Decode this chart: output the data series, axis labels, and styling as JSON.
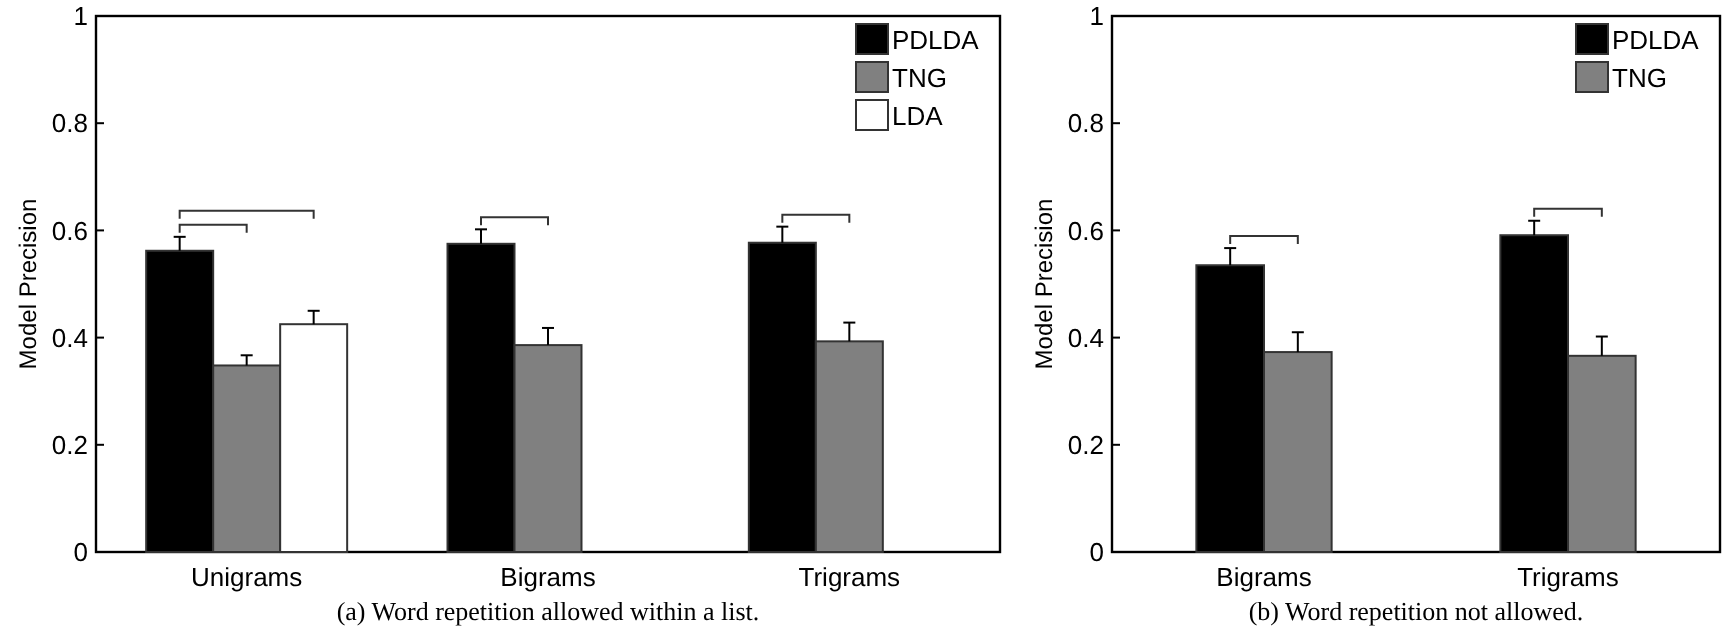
{
  "chart_data": [
    {
      "type": "bar",
      "ylabel": "Model Precision",
      "categories": [
        "Unigrams",
        "Bigrams",
        "Trigrams"
      ],
      "ylim": [
        0,
        1
      ],
      "yticks": [
        0,
        0.2,
        0.4,
        0.6,
        0.8,
        1
      ],
      "legend": "top right",
      "annotations": [
        "(a) Word repetition allowed within a list."
      ],
      "series": [
        {
          "name": "PDLDA",
          "color": "#000000",
          "values": [
            0.562,
            0.575,
            0.577
          ],
          "errors": [
            0.026,
            0.027,
            0.03
          ]
        },
        {
          "name": "TNG",
          "color": "#808080",
          "values": [
            0.348,
            0.386,
            0.393
          ],
          "errors": [
            0.019,
            0.032,
            0.035
          ]
        },
        {
          "name": "LDA",
          "color": "#ffffff",
          "values": [
            0.425,
            null,
            null
          ],
          "errors": [
            0.025,
            null,
            null
          ]
        }
      ]
    },
    {
      "type": "bar",
      "ylabel": "Model Precision",
      "categories": [
        "Bigrams",
        "Trigrams"
      ],
      "ylim": [
        0,
        1
      ],
      "yticks": [
        0,
        0.2,
        0.4,
        0.6,
        0.8,
        1
      ],
      "legend": "top right",
      "annotations": [
        "(b) Word repetition not allowed."
      ],
      "series": [
        {
          "name": "PDLDA",
          "color": "#000000",
          "values": [
            0.535,
            0.591
          ],
          "errors": [
            0.032,
            0.027
          ]
        },
        {
          "name": "TNG",
          "color": "#808080",
          "values": [
            0.373,
            0.366
          ],
          "errors": [
            0.037,
            0.036
          ]
        }
      ]
    }
  ]
}
